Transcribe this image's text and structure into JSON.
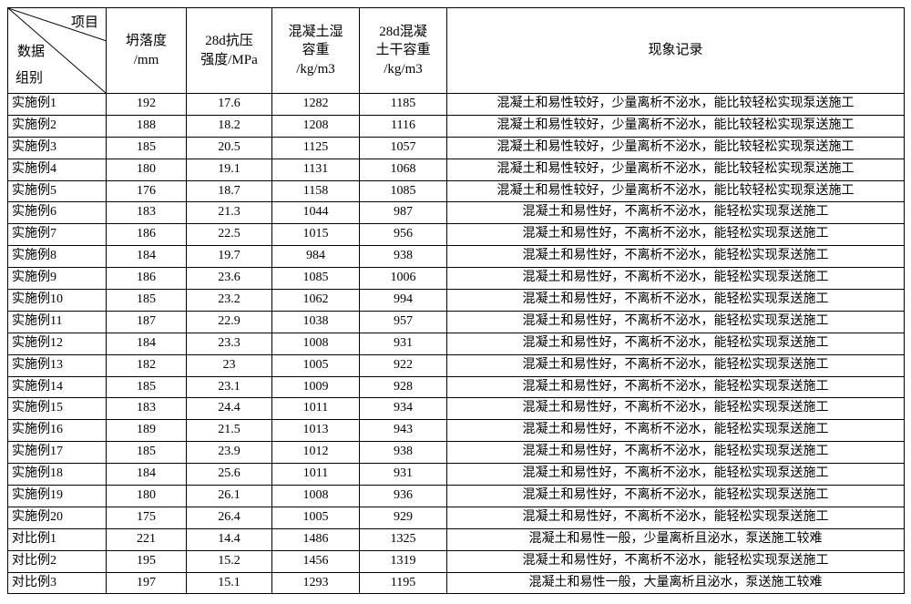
{
  "header": {
    "diag_top": "项目",
    "diag_mid": "数据",
    "diag_bot": "组别",
    "col1_l1": "坍落度",
    "col1_l2": "/mm",
    "col2_l1": "28d抗压",
    "col2_l2": "强度/MPa",
    "col3_l1": "混凝土湿",
    "col3_l2": "容重",
    "col3_l3": "/kg/m3",
    "col4_l1": "28d混凝",
    "col4_l2": "土干容重",
    "col4_l3": "/kg/m3",
    "col5": "现象记录"
  },
  "rows": [
    {
      "g": "实施例1",
      "s": "192",
      "p": "17.6",
      "w": "1282",
      "d": "1185",
      "n": "混凝土和易性较好，少量离析不泌水，能比较轻松实现泵送施工"
    },
    {
      "g": "实施例2",
      "s": "188",
      "p": "18.2",
      "w": "1208",
      "d": "1116",
      "n": "混凝土和易性较好，少量离析不泌水，能比较轻松实现泵送施工"
    },
    {
      "g": "实施例3",
      "s": "185",
      "p": "20.5",
      "w": "1125",
      "d": "1057",
      "n": "混凝土和易性较好，少量离析不泌水，能比较轻松实现泵送施工"
    },
    {
      "g": "实施例4",
      "s": "180",
      "p": "19.1",
      "w": "1131",
      "d": "1068",
      "n": "混凝土和易性较好，少量离析不泌水，能比较轻松实现泵送施工"
    },
    {
      "g": "实施例5",
      "s": "176",
      "p": "18.7",
      "w": "1158",
      "d": "1085",
      "n": "混凝土和易性较好，少量离析不泌水，能比较轻松实现泵送施工"
    },
    {
      "g": "实施例6",
      "s": "183",
      "p": "21.3",
      "w": "1044",
      "d": "987",
      "n": "混凝土和易性好，不离析不泌水，能轻松实现泵送施工"
    },
    {
      "g": "实施例7",
      "s": "186",
      "p": "22.5",
      "w": "1015",
      "d": "956",
      "n": "混凝土和易性好，不离析不泌水，能轻松实现泵送施工"
    },
    {
      "g": "实施例8",
      "s": "184",
      "p": "19.7",
      "w": "984",
      "d": "938",
      "n": "混凝土和易性好，不离析不泌水，能轻松实现泵送施工"
    },
    {
      "g": "实施例9",
      "s": "186",
      "p": "23.6",
      "w": "1085",
      "d": "1006",
      "n": "混凝土和易性好，不离析不泌水，能轻松实现泵送施工"
    },
    {
      "g": "实施例10",
      "s": "185",
      "p": "23.2",
      "w": "1062",
      "d": "994",
      "n": "混凝土和易性好，不离析不泌水，能轻松实现泵送施工"
    },
    {
      "g": "实施例11",
      "s": "187",
      "p": "22.9",
      "w": "1038",
      "d": "957",
      "n": "混凝土和易性好，不离析不泌水，能轻松实现泵送施工"
    },
    {
      "g": "实施例12",
      "s": "184",
      "p": "23.3",
      "w": "1008",
      "d": "931",
      "n": "混凝土和易性好，不离析不泌水，能轻松实现泵送施工"
    },
    {
      "g": "实施例13",
      "s": "182",
      "p": "23",
      "w": "1005",
      "d": "922",
      "n": "混凝土和易性好，不离析不泌水，能轻松实现泵送施工"
    },
    {
      "g": "实施例14",
      "s": "185",
      "p": "23.1",
      "w": "1009",
      "d": "928",
      "n": "混凝土和易性好，不离析不泌水，能轻松实现泵送施工"
    },
    {
      "g": "实施例15",
      "s": "183",
      "p": "24.4",
      "w": "1011",
      "d": "934",
      "n": "混凝土和易性好，不离析不泌水，能轻松实现泵送施工"
    },
    {
      "g": "实施例16",
      "s": "189",
      "p": "21.5",
      "w": "1013",
      "d": "943",
      "n": "混凝土和易性好，不离析不泌水，能轻松实现泵送施工"
    },
    {
      "g": "实施例17",
      "s": "185",
      "p": "23.9",
      "w": "1012",
      "d": "938",
      "n": "混凝土和易性好，不离析不泌水，能轻松实现泵送施工"
    },
    {
      "g": "实施例18",
      "s": "184",
      "p": "25.6",
      "w": "1011",
      "d": "931",
      "n": "混凝土和易性好，不离析不泌水，能轻松实现泵送施工"
    },
    {
      "g": "实施例19",
      "s": "180",
      "p": "26.1",
      "w": "1008",
      "d": "936",
      "n": "混凝土和易性好，不离析不泌水，能轻松实现泵送施工"
    },
    {
      "g": "实施例20",
      "s": "175",
      "p": "26.4",
      "w": "1005",
      "d": "929",
      "n": "混凝土和易性好，不离析不泌水，能轻松实现泵送施工"
    },
    {
      "g": "对比例1",
      "s": "221",
      "p": "14.4",
      "w": "1486",
      "d": "1325",
      "n": "混凝土和易性一般，少量离析且泌水，泵送施工较难"
    },
    {
      "g": "对比例2",
      "s": "195",
      "p": "15.2",
      "w": "1456",
      "d": "1319",
      "n": "混凝土和易性好，不离析不泌水，能轻松实现泵送施工"
    },
    {
      "g": "对比例3",
      "s": "197",
      "p": "15.1",
      "w": "1293",
      "d": "1195",
      "n": "混凝土和易性一般，大量离析且泌水，泵送施工较难"
    }
  ]
}
